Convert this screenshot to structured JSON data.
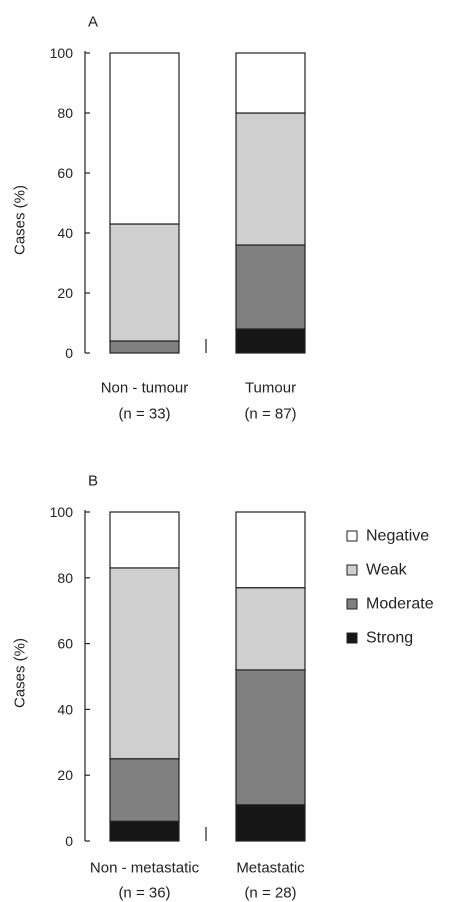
{
  "colors": {
    "Negative": "#ffffff",
    "Weak": "#cfcfcf",
    "Moderate": "#808080",
    "Strong": "#161616",
    "axis": "#222222"
  },
  "legend": {
    "placement": "right of panel B",
    "entries": [
      "Negative",
      "Weak",
      "Moderate",
      "Strong"
    ]
  },
  "chart_data": [
    {
      "type": "bar",
      "stacked": true,
      "panel_label": "A",
      "ylabel": "Cases (%)",
      "ylim": [
        0,
        100
      ],
      "yticks": [
        "0",
        "20",
        "40",
        "60",
        "80",
        "100"
      ],
      "categories": [
        {
          "name": "Non - tumour",
          "n": "(n = 33)"
        },
        {
          "name": "Tumour",
          "n": "(n = 87)"
        }
      ],
      "series": [
        {
          "name": "Strong",
          "values": [
            0,
            8
          ]
        },
        {
          "name": "Moderate",
          "values": [
            4,
            28
          ]
        },
        {
          "name": "Weak",
          "values": [
            39,
            44
          ]
        },
        {
          "name": "Negative",
          "values": [
            57,
            20
          ]
        }
      ]
    },
    {
      "type": "bar",
      "stacked": true,
      "panel_label": "B",
      "ylabel": "Cases (%)",
      "ylim": [
        0,
        100
      ],
      "yticks": [
        "0",
        "20",
        "40",
        "60",
        "80",
        "100"
      ],
      "categories": [
        {
          "name": "Non - metastatic",
          "n": "(n = 36)"
        },
        {
          "name": "Metastatic",
          "n": "(n = 28)"
        }
      ],
      "series": [
        {
          "name": "Strong",
          "values": [
            6,
            11
          ]
        },
        {
          "name": "Moderate",
          "values": [
            19,
            41
          ]
        },
        {
          "name": "Weak",
          "values": [
            58,
            25
          ]
        },
        {
          "name": "Negative",
          "values": [
            17,
            23
          ]
        }
      ]
    }
  ]
}
